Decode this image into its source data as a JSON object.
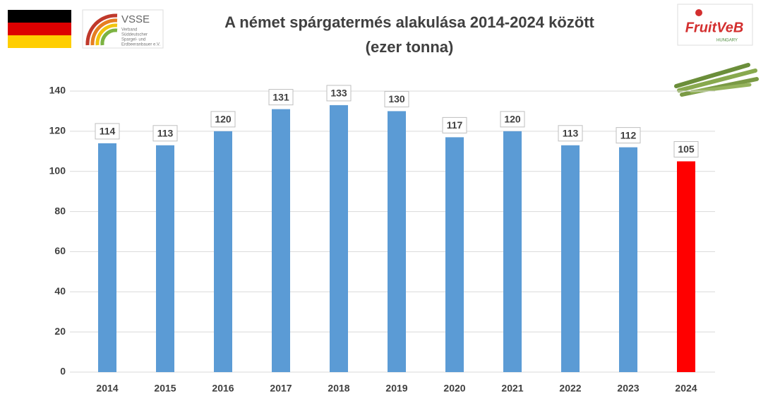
{
  "chart_data": {
    "type": "bar",
    "title": "A német spárgatermés alakulása 2014-2024 között",
    "subtitle": "(ezer tonna)",
    "categories": [
      "2014",
      "2015",
      "2016",
      "2017",
      "2018",
      "2019",
      "2020",
      "2021",
      "2022",
      "2023",
      "2024"
    ],
    "values": [
      114,
      113,
      120,
      131,
      133,
      130,
      117,
      120,
      113,
      112,
      105
    ],
    "colors": [
      "#5b9bd5",
      "#5b9bd5",
      "#5b9bd5",
      "#5b9bd5",
      "#5b9bd5",
      "#5b9bd5",
      "#5b9bd5",
      "#5b9bd5",
      "#5b9bd5",
      "#5b9bd5",
      "#ff0000"
    ],
    "ylim": [
      0,
      140
    ],
    "yticks": [
      0,
      20,
      40,
      60,
      80,
      100,
      120,
      140
    ],
    "grid": true
  },
  "logos": {
    "vsse": {
      "name": "VSSE",
      "lines": [
        "Verband",
        "Süddeutscher",
        "Spargel- und",
        "Erdbeeranbauer e.V."
      ]
    },
    "fruitveb": {
      "name": "FruitVeB",
      "country": "HUNGARY"
    }
  }
}
